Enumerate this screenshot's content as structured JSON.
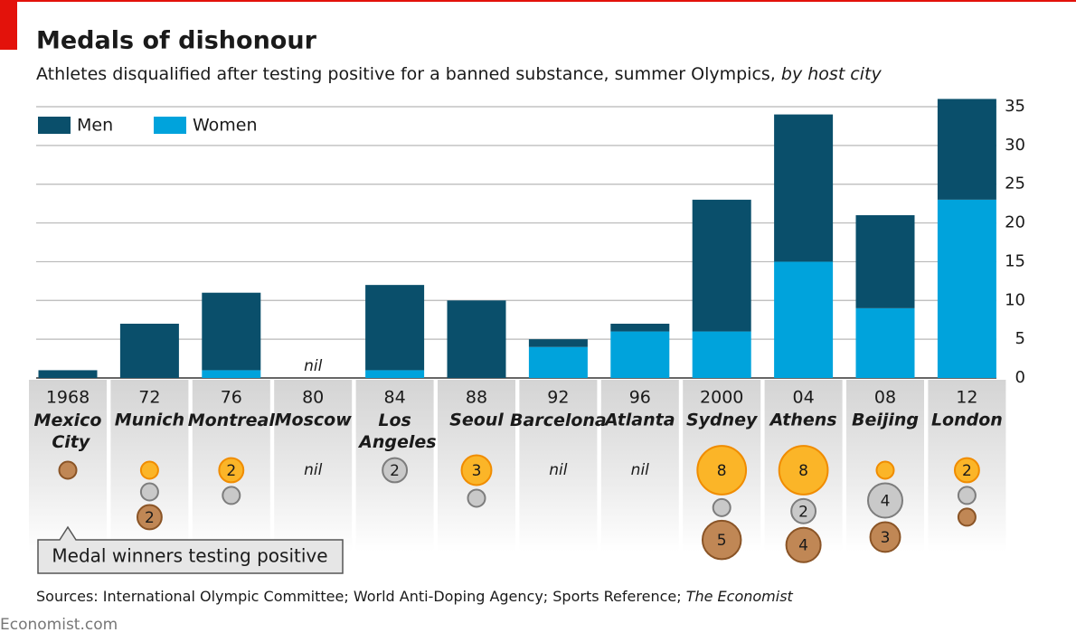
{
  "chart_data": {
    "type": "bar",
    "stacked": true,
    "title": "Medals of dishonour",
    "subtitle": "Athletes disqualified after testing positive for a banned substance, summer Olympics,",
    "subtitle_emphasis": "by host city",
    "years": [
      "1968",
      "72",
      "76",
      "80",
      "84",
      "88",
      "92",
      "96",
      "2000",
      "04",
      "08",
      "12"
    ],
    "categories": [
      "Mexico City",
      "Munich",
      "Montreal",
      "Moscow",
      "Los Angeles",
      "Seoul",
      "Barcelona",
      "Atlanta",
      "Sydney",
      "Athens",
      "Beijing",
      "London"
    ],
    "series": [
      {
        "name": "Men",
        "color": "#0a4f6b",
        "values": [
          1,
          7,
          10,
          null,
          11,
          10,
          1,
          1,
          17,
          19,
          12,
          13
        ]
      },
      {
        "name": "Women",
        "color": "#00a3dc",
        "values": [
          0,
          0,
          1,
          null,
          1,
          0,
          4,
          6,
          6,
          15,
          9,
          23
        ]
      }
    ],
    "ylim": [
      0,
      35
    ],
    "yticks": [
      0,
      5,
      10,
      15,
      20,
      25,
      30,
      35
    ],
    "grid": true,
    "nil_label": "nil",
    "medals": {
      "label": "Medal winners testing positive",
      "gold": [
        null,
        1,
        2,
        null,
        null,
        3,
        null,
        null,
        8,
        8,
        1,
        2
      ],
      "silver": [
        null,
        1,
        1,
        null,
        2,
        1,
        null,
        null,
        1,
        2,
        4,
        1
      ],
      "bronze": [
        1,
        2,
        null,
        null,
        null,
        null,
        null,
        null,
        5,
        4,
        3,
        1
      ],
      "colors": {
        "gold": "#fbb528",
        "silver": "#c9c9c9",
        "bronze": "#c08755"
      },
      "stroke_colors": {
        "gold": "#f08c00",
        "silver": "#7d7d7d",
        "bronze": "#8a5426"
      }
    },
    "source": "Sources: International Olympic Committee; World Anti-Doping Agency; Sports Reference;",
    "source_emphasis": "The Economist",
    "footer": "Economist.com"
  }
}
